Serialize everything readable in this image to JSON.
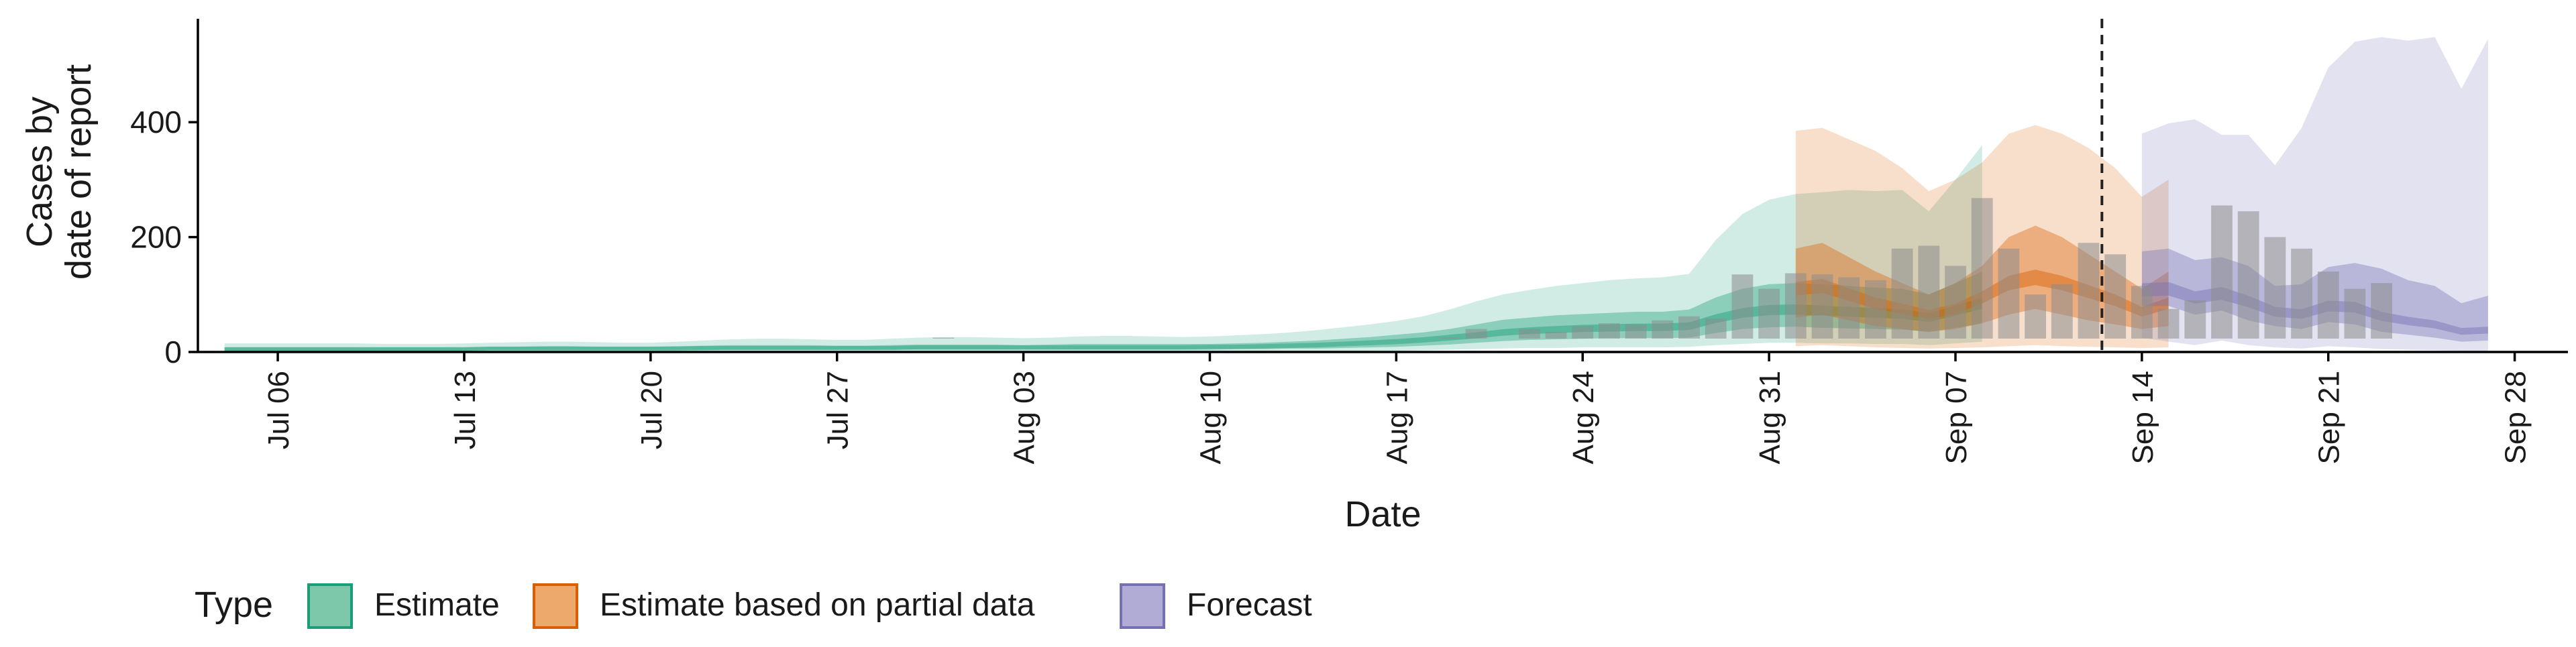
{
  "chart_data": {
    "type": "area",
    "xlabel": "Date",
    "ylabel": [
      "Cases by",
      "date of report"
    ],
    "ylim": [
      0,
      580
    ],
    "yticks": [
      0,
      200,
      400
    ],
    "x_start": "2020-07-03",
    "x_end": "2020-09-30",
    "xticks": [
      {
        "date": "2020-07-06",
        "label": "Jul 06"
      },
      {
        "date": "2020-07-13",
        "label": "Jul 13"
      },
      {
        "date": "2020-07-20",
        "label": "Jul 20"
      },
      {
        "date": "2020-07-27",
        "label": "Jul 27"
      },
      {
        "date": "2020-08-03",
        "label": "Aug 03"
      },
      {
        "date": "2020-08-10",
        "label": "Aug 10"
      },
      {
        "date": "2020-08-17",
        "label": "Aug 17"
      },
      {
        "date": "2020-08-24",
        "label": "Aug 24"
      },
      {
        "date": "2020-08-31",
        "label": "Aug 31"
      },
      {
        "date": "2020-09-07",
        "label": "Sep 07"
      },
      {
        "date": "2020-09-14",
        "label": "Sep 14"
      },
      {
        "date": "2020-09-21",
        "label": "Sep 21"
      },
      {
        "date": "2020-09-28",
        "label": "Sep 28"
      }
    ],
    "forecast_date": "2020-09-13",
    "legend": {
      "title": "Type",
      "position": "bottom",
      "items": [
        {
          "label": "Estimate",
          "fill": "#7dc8aa",
          "stroke": "#1b9e77"
        },
        {
          "label": "Estimate based on partial data",
          "fill": "#eda86c",
          "stroke": "#d95f02"
        },
        {
          "label": "Forecast",
          "fill": "#b1acd5",
          "stroke": "#7570b3"
        }
      ]
    },
    "colors": {
      "Estimate": "#1b9e77",
      "Estimate based on partial data": "#d95f02",
      "Forecast": "#7570b3",
      "bars": "#8c8c8c"
    },
    "reported_cases": {
      "start": "2020-07-05",
      "values": [
        22,
        2,
        3,
        2,
        3,
        3,
        3,
        4,
        4,
        4,
        5,
        5,
        4,
        10,
        8,
        3,
        5,
        7,
        12,
        10,
        7,
        18,
        5,
        3,
        6,
        8,
        25,
        15,
        10,
        8,
        6,
        5,
        4,
        3,
        5,
        6,
        8,
        4,
        7,
        10,
        15,
        14,
        18,
        20,
        22,
        25,
        40,
        20,
        40,
        35,
        45,
        50,
        48,
        55,
        62,
        58,
        135,
        110,
        137,
        135,
        130,
        125,
        180,
        185,
        150,
        268,
        180,
        100,
        118,
        190,
        170,
        115,
        75,
        90,
        255,
        245,
        200,
        180,
        140,
        110,
        120
      ]
    },
    "bands": [
      {
        "type": "Estimate",
        "start": "2020-07-04",
        "upper90": [
          15,
          15,
          15,
          15,
          15,
          15,
          14,
          14,
          14,
          15,
          16,
          17,
          18,
          18,
          17,
          16,
          16,
          18,
          20,
          22,
          23,
          23,
          22,
          21,
          21,
          23,
          25,
          26,
          26,
          25,
          24,
          25,
          27,
          28,
          28,
          27,
          26,
          27,
          29,
          31,
          34,
          38,
          43,
          48,
          54,
          62,
          74,
          88,
          100,
          108,
          115,
          120,
          125,
          128,
          130,
          136,
          195,
          240,
          265,
          275,
          278,
          282,
          280,
          282,
          245,
          300,
          360
        ],
        "upper50": [
          8,
          8,
          8,
          8,
          8,
          8,
          8,
          8,
          8,
          8,
          9,
          9,
          10,
          10,
          9,
          9,
          9,
          10,
          11,
          12,
          12,
          12,
          12,
          11,
          11,
          12,
          13,
          13,
          13,
          13,
          12,
          13,
          14,
          14,
          14,
          14,
          14,
          14,
          15,
          16,
          18,
          20,
          23,
          26,
          30,
          34,
          40,
          48,
          56,
          60,
          64,
          66,
          68,
          70,
          70,
          74,
          95,
          110,
          118,
          120,
          118,
          115,
          112,
          110,
          100,
          120,
          140
        ],
        "median": [
          5,
          5,
          5,
          5,
          5,
          5,
          5,
          5,
          5,
          5,
          6,
          6,
          6,
          6,
          6,
          6,
          6,
          6,
          7,
          7,
          7,
          7,
          7,
          7,
          7,
          7,
          8,
          8,
          8,
          8,
          8,
          8,
          8,
          8,
          8,
          8,
          8,
          9,
          9,
          10,
          11,
          12,
          14,
          16,
          18,
          21,
          25,
          29,
          34,
          37,
          39,
          41,
          42,
          43,
          43,
          45,
          58,
          68,
          73,
          74,
          72,
          70,
          68,
          66,
          60,
          72,
          85
        ],
        "lower50": [
          2,
          2,
          2,
          2,
          2,
          2,
          2,
          2,
          2,
          2,
          3,
          3,
          3,
          3,
          3,
          3,
          3,
          3,
          3,
          4,
          4,
          4,
          4,
          4,
          4,
          4,
          4,
          4,
          4,
          4,
          4,
          4,
          4,
          4,
          4,
          4,
          4,
          4,
          5,
          5,
          6,
          6,
          7,
          8,
          9,
          11,
          13,
          16,
          19,
          21,
          22,
          23,
          24,
          24,
          24,
          25,
          33,
          40,
          43,
          44,
          42,
          41,
          40,
          39,
          35,
          42,
          50
        ],
        "lower90": [
          0,
          0,
          0,
          0,
          0,
          0,
          0,
          0,
          0,
          0,
          0,
          0,
          0,
          0,
          0,
          0,
          0,
          0,
          0,
          0,
          0,
          0,
          0,
          0,
          0,
          0,
          0,
          0,
          0,
          0,
          0,
          0,
          0,
          0,
          0,
          0,
          0,
          0,
          0,
          0,
          0,
          1,
          1,
          2,
          2,
          3,
          4,
          5,
          6,
          7,
          7,
          8,
          8,
          8,
          8,
          9,
          12,
          14,
          16,
          16,
          15,
          15,
          14,
          14,
          12,
          15,
          18
        ]
      },
      {
        "type": "Estimate based on partial data",
        "start": "2020-09-01",
        "upper90": [
          385,
          390,
          370,
          350,
          320,
          280,
          300,
          330,
          380,
          395,
          380,
          355,
          320,
          270,
          300
        ],
        "upper50": [
          180,
          190,
          165,
          140,
          120,
          100,
          120,
          150,
          200,
          220,
          200,
          170,
          140,
          110,
          140
        ],
        "median": [
          110,
          115,
          100,
          85,
          75,
          65,
          75,
          95,
          120,
          130,
          120,
          105,
          90,
          70,
          85
        ],
        "lower50": [
          60,
          65,
          55,
          45,
          40,
          35,
          40,
          50,
          65,
          75,
          65,
          55,
          48,
          40,
          45
        ],
        "lower90": [
          10,
          12,
          10,
          8,
          7,
          6,
          7,
          8,
          10,
          12,
          10,
          9,
          8,
          7,
          8
        ]
      },
      {
        "type": "Forecast",
        "start": "2020-09-14",
        "upper90": [
          380,
          398,
          405,
          378,
          378,
          325,
          390,
          495,
          540,
          548,
          542,
          548,
          458,
          545
        ],
        "upper50": [
          175,
          180,
          160,
          165,
          150,
          115,
          118,
          148,
          155,
          145,
          125,
          115,
          85,
          98
        ],
        "median": [
          108,
          110,
          95,
          102,
          88,
          70,
          66,
          80,
          78,
          62,
          54,
          48,
          36,
          38
        ],
        "lower50": [
          80,
          80,
          65,
          72,
          55,
          45,
          40,
          52,
          48,
          35,
          30,
          25,
          18,
          20
        ],
        "lower90": [
          25,
          18,
          12,
          20,
          12,
          8,
          6,
          10,
          8,
          5,
          4,
          3,
          2,
          2
        ]
      }
    ]
  }
}
